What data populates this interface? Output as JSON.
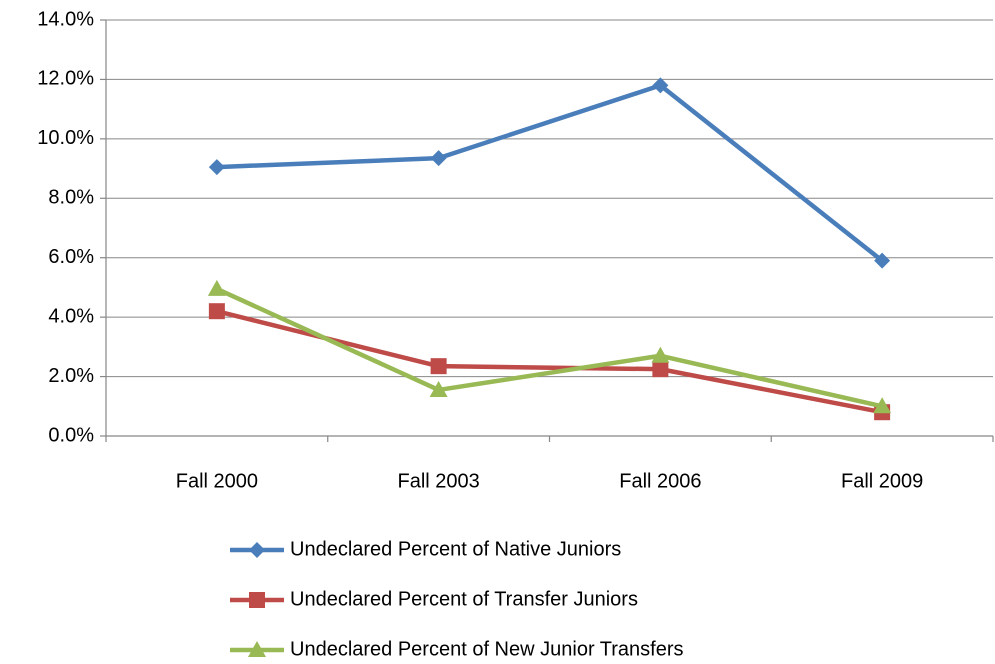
{
  "chart_data": {
    "type": "line",
    "categories": [
      "Fall 2000",
      "Fall 2003",
      "Fall 2006",
      "Fall 2009"
    ],
    "series": [
      {
        "name": "Undeclared Percent of Native Juniors",
        "color": "#4a7ebb",
        "marker": "diamond",
        "values": [
          9.05,
          9.35,
          11.8,
          5.9
        ]
      },
      {
        "name": "Undeclared Percent of Transfer Juniors",
        "color": "#be4b48",
        "marker": "square",
        "values": [
          4.2,
          2.35,
          2.25,
          0.8
        ]
      },
      {
        "name": "Undeclared Percent of New Junior Transfers",
        "color": "#98b954",
        "marker": "triangle",
        "values": [
          4.95,
          1.55,
          2.7,
          1.0
        ]
      }
    ],
    "ylim": [
      0,
      14
    ],
    "yticks": [
      {
        "value": 0,
        "label": "0.0%"
      },
      {
        "value": 2,
        "label": "2.0%"
      },
      {
        "value": 4,
        "label": "4.0%"
      },
      {
        "value": 6,
        "label": "6.0%"
      },
      {
        "value": 8,
        "label": "8.0%"
      },
      {
        "value": 10,
        "label": "10.0%"
      },
      {
        "value": 12,
        "label": "12.0%"
      },
      {
        "value": 14,
        "label": "14.0%"
      }
    ],
    "grid": true,
    "legend": "bottom"
  }
}
